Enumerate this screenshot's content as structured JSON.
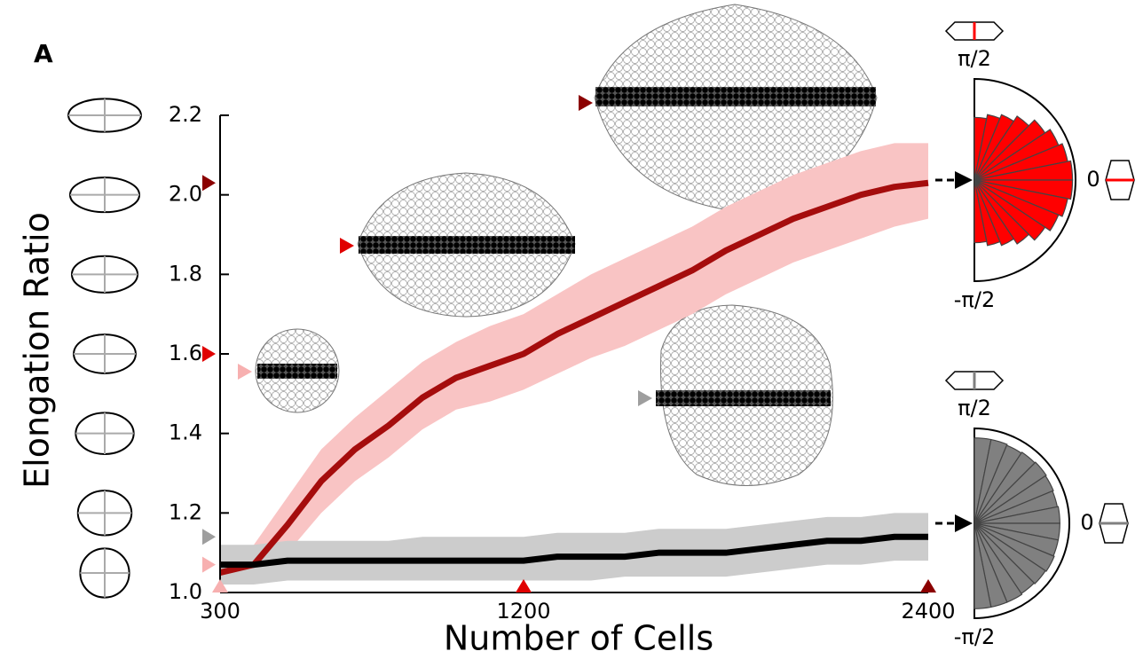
{
  "chart_data": {
    "type": "line",
    "panel_label": "A",
    "y_label": "Elongation Ratio",
    "x_label": "Number of Cells",
    "xlim": [
      300,
      2400
    ],
    "xticks": [
      300,
      1200,
      2400
    ],
    "ylim": [
      1.0,
      2.2
    ],
    "yticks": [
      {
        "value": 1.0,
        "label": "1.0"
      },
      {
        "value": 1.2,
        "label": "1.2"
      },
      {
        "value": 1.4,
        "label": "1.4"
      },
      {
        "value": 1.6,
        "label": "1.6"
      },
      {
        "value": 1.8,
        "label": "1.8"
      },
      {
        "value": 2.0,
        "label": "2.0"
      },
      {
        "value": 2.2,
        "label": "2.2"
      }
    ],
    "x": [
      300,
      400,
      500,
      600,
      700,
      800,
      900,
      1000,
      1100,
      1200,
      1300,
      1400,
      1500,
      1600,
      1700,
      1800,
      1900,
      2000,
      2100,
      2200,
      2300,
      2400
    ],
    "series": [
      {
        "color": "#a50d0d",
        "band_color": "#f9c4c4",
        "values": [
          1.05,
          1.07,
          1.17,
          1.28,
          1.36,
          1.42,
          1.49,
          1.54,
          1.57,
          1.6,
          1.65,
          1.69,
          1.73,
          1.77,
          1.81,
          1.86,
          1.9,
          1.94,
          1.97,
          2.0,
          2.02,
          2.03
        ],
        "upper": [
          1.09,
          1.12,
          1.24,
          1.36,
          1.44,
          1.51,
          1.58,
          1.63,
          1.67,
          1.7,
          1.75,
          1.8,
          1.84,
          1.88,
          1.92,
          1.97,
          2.01,
          2.05,
          2.08,
          2.11,
          2.13,
          2.13
        ],
        "lower": [
          1.02,
          1.03,
          1.1,
          1.2,
          1.28,
          1.34,
          1.41,
          1.46,
          1.48,
          1.51,
          1.55,
          1.59,
          1.62,
          1.66,
          1.7,
          1.75,
          1.79,
          1.83,
          1.86,
          1.89,
          1.92,
          1.94
        ]
      },
      {
        "color": "#000000",
        "band_color": "#cccccc",
        "values": [
          1.07,
          1.07,
          1.08,
          1.08,
          1.08,
          1.08,
          1.08,
          1.08,
          1.08,
          1.08,
          1.09,
          1.09,
          1.09,
          1.1,
          1.1,
          1.1,
          1.11,
          1.12,
          1.13,
          1.13,
          1.14,
          1.14
        ],
        "upper": [
          1.12,
          1.12,
          1.13,
          1.13,
          1.13,
          1.13,
          1.14,
          1.14,
          1.14,
          1.14,
          1.15,
          1.15,
          1.15,
          1.16,
          1.16,
          1.16,
          1.17,
          1.18,
          1.19,
          1.19,
          1.2,
          1.2
        ],
        "lower": [
          1.02,
          1.02,
          1.03,
          1.03,
          1.03,
          1.03,
          1.03,
          1.03,
          1.03,
          1.03,
          1.03,
          1.03,
          1.04,
          1.04,
          1.04,
          1.04,
          1.05,
          1.06,
          1.07,
          1.07,
          1.08,
          1.08
        ]
      }
    ],
    "y_markers": [
      {
        "value": 2.03,
        "color": "#8b0000"
      },
      {
        "value": 1.6,
        "color": "#e00000"
      },
      {
        "value": 1.14,
        "color": "#9e9e9e"
      },
      {
        "value": 1.07,
        "color": "#f7b0b0"
      }
    ],
    "x_markers": [
      {
        "value": 300,
        "color": "#f7b0b0"
      },
      {
        "value": 1200,
        "color": "#e00000"
      },
      {
        "value": 2400,
        "color": "#8b0000"
      }
    ],
    "roses": [
      {
        "color": "#ff0000",
        "top": "π/2",
        "right": "0",
        "bottom": "-π/2",
        "values": [
          0.62,
          0.66,
          0.7,
          0.76,
          0.84,
          0.9,
          0.94,
          0.97,
          0.97,
          0.94,
          0.9,
          0.84,
          0.76,
          0.7,
          0.66,
          0.62
        ]
      },
      {
        "color": "#808080",
        "top": "π/2",
        "right": "0",
        "bottom": "-π/2",
        "values": [
          0.9,
          0.9,
          0.89,
          0.9,
          0.91,
          0.9,
          0.89,
          0.9,
          0.9,
          0.9,
          0.91,
          0.9,
          0.89,
          0.9,
          0.9,
          0.9
        ]
      }
    ]
  }
}
